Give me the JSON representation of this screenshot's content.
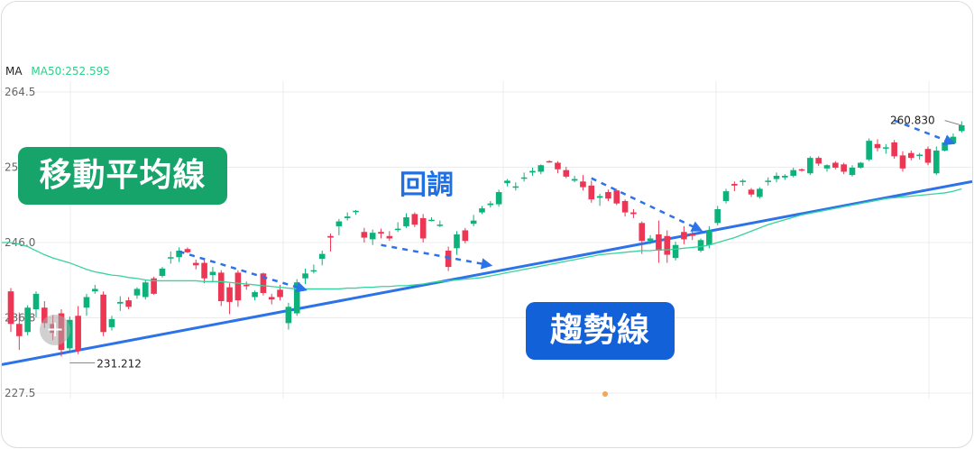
{
  "legend": {
    "indicator": "MA",
    "ma50": "MA50:252.595"
  },
  "y_ticks": [
    "264.5",
    "255.3",
    "246.0",
    "236.8",
    "227.5"
  ],
  "annotations": {
    "low_value": "231.212",
    "high_value": "260.830",
    "moving_average": "移動平均線",
    "pullback": "回調",
    "trendline": "趨勢線"
  },
  "colors": {
    "up": "#0cb27a",
    "down": "#ec3654",
    "ma50": "#36d49a",
    "trendline": "#2c72e8",
    "arrow": "#2c72e8",
    "grid": "#ececec",
    "tag_green": "#16a46b",
    "tag_blue": "#1361d8"
  },
  "icons": {
    "crosshair": "plus-icon"
  },
  "chart_data": {
    "type": "candlestick",
    "ylim": [
      227.5,
      264.5
    ],
    "grid": true,
    "candles": [
      [
        240.0,
        240.4,
        235.0,
        236.0
      ],
      [
        236.0,
        237.4,
        232.8,
        234.5
      ],
      [
        235.0,
        238.3,
        234.6,
        238.0
      ],
      [
        237.8,
        240.0,
        236.8,
        239.7
      ],
      [
        238.0,
        238.8,
        235.5,
        236.1
      ],
      [
        236.0,
        237.1,
        234.0,
        234.9
      ],
      [
        237.3,
        237.8,
        232.0,
        232.8
      ],
      [
        233.0,
        236.9,
        232.7,
        236.5
      ],
      [
        237.0,
        238.2,
        232.3,
        232.7
      ],
      [
        238.0,
        239.7,
        237.0,
        239.3
      ],
      [
        240.0,
        240.8,
        239.7,
        240.3
      ],
      [
        239.6,
        240.0,
        234.5,
        235.0
      ],
      [
        235.6,
        237.0,
        235.2,
        236.6
      ],
      [
        238.5,
        239.4,
        237.6,
        238.7
      ],
      [
        238.9,
        239.3,
        237.8,
        238.1
      ],
      [
        239.5,
        240.5,
        239.1,
        240.3
      ],
      [
        239.3,
        241.4,
        239.0,
        241.1
      ],
      [
        241.6,
        241.8,
        239.6,
        239.7
      ],
      [
        241.9,
        243.0,
        241.7,
        242.8
      ],
      [
        244.2,
        244.9,
        243.4,
        244.2
      ],
      [
        244.2,
        245.4,
        243.6,
        245.0
      ],
      [
        245.2,
        245.4,
        244.7,
        244.8
      ],
      [
        243.5,
        243.9,
        242.7,
        243.2
      ],
      [
        243.5,
        244.0,
        241.0,
        241.6
      ],
      [
        242.0,
        243.0,
        241.1,
        242.4
      ],
      [
        242.3,
        242.6,
        238.2,
        238.8
      ],
      [
        240.5,
        241.0,
        237.2,
        238.7
      ],
      [
        242.3,
        242.6,
        238.1,
        238.9
      ],
      [
        240.8,
        241.2,
        240.2,
        240.7
      ],
      [
        239.3,
        240.1,
        238.9,
        239.9
      ],
      [
        242.2,
        242.3,
        239.5,
        239.8
      ],
      [
        239.3,
        239.7,
        238.4,
        239.0
      ],
      [
        240.2,
        240.8,
        238.9,
        239.3
      ],
      [
        236.1,
        238.6,
        235.3,
        238.1
      ],
      [
        237.3,
        241.5,
        237.0,
        241.1
      ],
      [
        241.6,
        242.8,
        240.9,
        242.2
      ],
      [
        242.5,
        243.3,
        242.2,
        242.6
      ],
      [
        244.0,
        245.0,
        243.2,
        244.6
      ],
      [
        246.8,
        247.1,
        244.9,
        246.6
      ],
      [
        248.0,
        248.9,
        246.9,
        248.6
      ],
      [
        249.0,
        249.7,
        248.7,
        249.2
      ],
      [
        249.8,
        250.0,
        249.4,
        249.9
      ],
      [
        247.3,
        247.8,
        246.0,
        246.6
      ],
      [
        246.4,
        247.6,
        245.7,
        247.2
      ],
      [
        247.3,
        247.7,
        246.5,
        247.1
      ],
      [
        246.8,
        247.4,
        246.2,
        246.5
      ],
      [
        247.6,
        248.5,
        247.3,
        247.7
      ],
      [
        248.0,
        249.6,
        247.8,
        249.1
      ],
      [
        249.5,
        249.7,
        247.9,
        248.2
      ],
      [
        249.0,
        249.5,
        246.0,
        246.5
      ],
      [
        248.7,
        249.1,
        248.6,
        248.8
      ],
      [
        248.2,
        248.7,
        247.9,
        248.2
      ],
      [
        245.0,
        245.5,
        242.5,
        243.0
      ],
      [
        245.3,
        247.4,
        244.5,
        247.0
      ],
      [
        247.5,
        247.8,
        245.9,
        246.2
      ],
      [
        248.3,
        249.4,
        248.0,
        248.7
      ],
      [
        249.7,
        250.5,
        249.5,
        250.2
      ],
      [
        250.6,
        251.1,
        250.3,
        250.8
      ],
      [
        250.7,
        252.5,
        250.4,
        252.2
      ],
      [
        253.3,
        253.8,
        252.9,
        253.6
      ],
      [
        252.8,
        253.4,
        252.4,
        252.9
      ],
      [
        254.0,
        254.6,
        253.5,
        254.0
      ],
      [
        254.6,
        255.2,
        254.2,
        254.8
      ],
      [
        254.7,
        255.6,
        254.4,
        255.5
      ],
      [
        256.0,
        256.1,
        255.8,
        255.9
      ],
      [
        255.8,
        256.0,
        254.5,
        255.0
      ],
      [
        254.9,
        255.3,
        253.9,
        254.1
      ],
      [
        253.6,
        254.2,
        253.4,
        253.8
      ],
      [
        253.5,
        254.3,
        252.4,
        252.8
      ],
      [
        253.0,
        253.6,
        250.9,
        251.3
      ],
      [
        251.5,
        252.0,
        250.5,
        251.7
      ],
      [
        252.2,
        252.5,
        251.1,
        251.4
      ],
      [
        252.4,
        252.6,
        250.6,
        250.8
      ],
      [
        251.1,
        251.3,
        249.2,
        249.7
      ],
      [
        249.7,
        250.1,
        249.0,
        249.5
      ],
      [
        248.4,
        248.6,
        244.6,
        246.2
      ],
      [
        246.2,
        246.9,
        245.8,
        246.5
      ],
      [
        247.0,
        248.7,
        243.5,
        245.0
      ],
      [
        246.8,
        247.5,
        243.5,
        244.5
      ],
      [
        244.1,
        246.1,
        243.8,
        245.7
      ],
      [
        247.3,
        248.0,
        245.8,
        246.4
      ],
      [
        247.0,
        247.5,
        246.3,
        246.9
      ],
      [
        245.0,
        246.5,
        244.8,
        246.3
      ],
      [
        245.7,
        248.0,
        245.3,
        247.5
      ],
      [
        248.4,
        250.5,
        248.1,
        250.1
      ],
      [
        251.1,
        252.6,
        250.8,
        252.3
      ],
      [
        253.2,
        253.5,
        252.3,
        253.0
      ],
      [
        253.6,
        253.8,
        253.0,
        253.6
      ],
      [
        252.5,
        252.7,
        251.6,
        251.9
      ],
      [
        251.6,
        252.8,
        251.4,
        252.6
      ],
      [
        253.5,
        254.0,
        253.0,
        253.6
      ],
      [
        253.8,
        254.6,
        253.4,
        254.2
      ],
      [
        254.0,
        254.4,
        253.7,
        254.2
      ],
      [
        254.2,
        255.2,
        254.0,
        254.9
      ],
      [
        255.0,
        255.1,
        254.7,
        254.9
      ],
      [
        254.5,
        256.6,
        254.3,
        256.4
      ],
      [
        256.4,
        256.6,
        255.4,
        255.7
      ],
      [
        255.1,
        255.6,
        254.7,
        255.5
      ],
      [
        255.8,
        256.0,
        255.0,
        255.2
      ],
      [
        255.6,
        255.8,
        254.4,
        254.7
      ],
      [
        254.3,
        255.5,
        254.1,
        255.2
      ],
      [
        255.2,
        255.9,
        255.1,
        255.8
      ],
      [
        256.2,
        258.8,
        256.0,
        258.5
      ],
      [
        258.1,
        258.7,
        257.2,
        257.6
      ],
      [
        257.6,
        258.1,
        256.9,
        257.7
      ],
      [
        258.3,
        258.6,
        256.3,
        256.6
      ],
      [
        256.7,
        257.2,
        254.7,
        255.1
      ],
      [
        257.0,
        257.3,
        256.1,
        256.4
      ],
      [
        256.7,
        257.0,
        256.2,
        256.8
      ],
      [
        257.5,
        257.8,
        255.5,
        255.8
      ],
      [
        254.5,
        257.8,
        254.3,
        257.3
      ],
      [
        257.3,
        258.6,
        257.2,
        258.3
      ],
      [
        258.2,
        259.4,
        258.1,
        259.0
      ],
      [
        259.7,
        260.9,
        259.5,
        260.4
      ]
    ],
    "series": [
      {
        "name": "MA50",
        "values": [
          246.0,
          245.8,
          245.5,
          245.0,
          244.5,
          244.1,
          243.8,
          243.5,
          243.1,
          242.7,
          242.4,
          242.2,
          242.0,
          241.9,
          241.7,
          241.6,
          241.4,
          241.3,
          241.3,
          241.3,
          241.3,
          241.3,
          241.3,
          241.2,
          241.2,
          241.2,
          241.1,
          241.0,
          240.9,
          240.8,
          240.7,
          240.6,
          240.5,
          240.4,
          240.3,
          240.3,
          240.3,
          240.3,
          240.3,
          240.3,
          240.4,
          240.4,
          240.5,
          240.5,
          240.6,
          240.6,
          240.7,
          240.7,
          240.8,
          240.9,
          241.1,
          241.2,
          241.3,
          241.4,
          241.5,
          241.6,
          241.7,
          241.9,
          242.1,
          242.3,
          242.5,
          242.7,
          242.9,
          243.1,
          243.3,
          243.5,
          243.7,
          243.9,
          244.1,
          244.3,
          244.5,
          244.6,
          244.7,
          244.8,
          244.9,
          245.0,
          245.0,
          245.1,
          245.1,
          245.2,
          245.3,
          245.4,
          245.5,
          245.7,
          246.0,
          246.3,
          246.6,
          247.0,
          247.4,
          247.8,
          248.2,
          248.5,
          248.8,
          249.1,
          249.4,
          249.6,
          249.8,
          250.0,
          250.2,
          250.4,
          250.6,
          250.8,
          251.0,
          251.2,
          251.4,
          251.5,
          251.6,
          251.7,
          251.8,
          251.9,
          252.0,
          252.1,
          252.3,
          252.595
        ]
      }
    ]
  }
}
